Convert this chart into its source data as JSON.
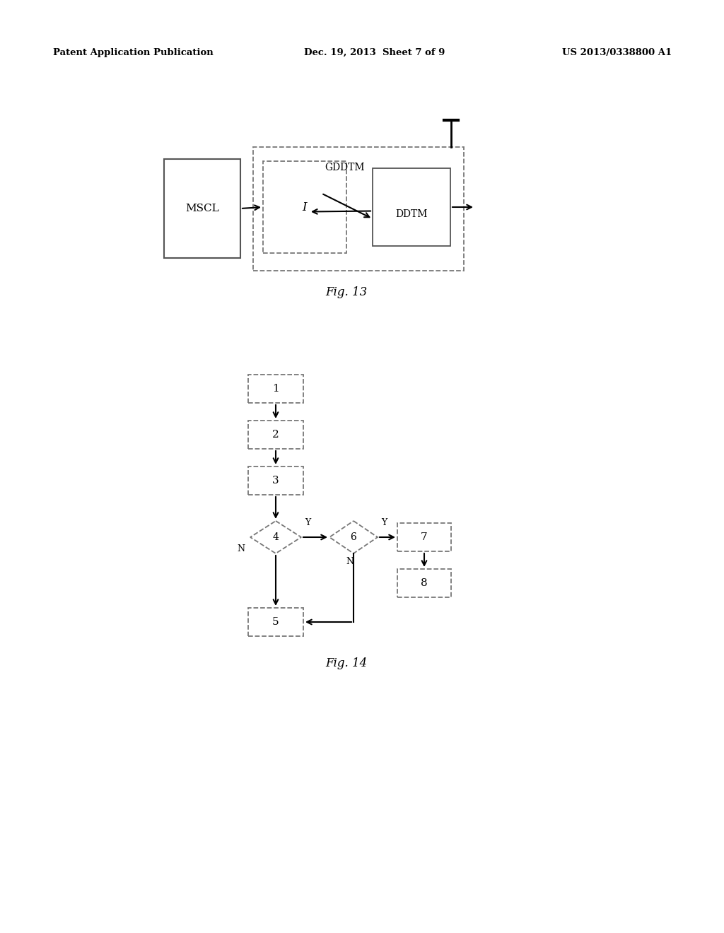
{
  "bg_color": "#ffffff",
  "header_left": "Patent Application Publication",
  "header_mid": "Dec. 19, 2013  Sheet 7 of 9",
  "header_right": "US 2013/0338800 A1",
  "fig13_caption": "Fig. 13",
  "fig14_caption": "Fig. 14"
}
